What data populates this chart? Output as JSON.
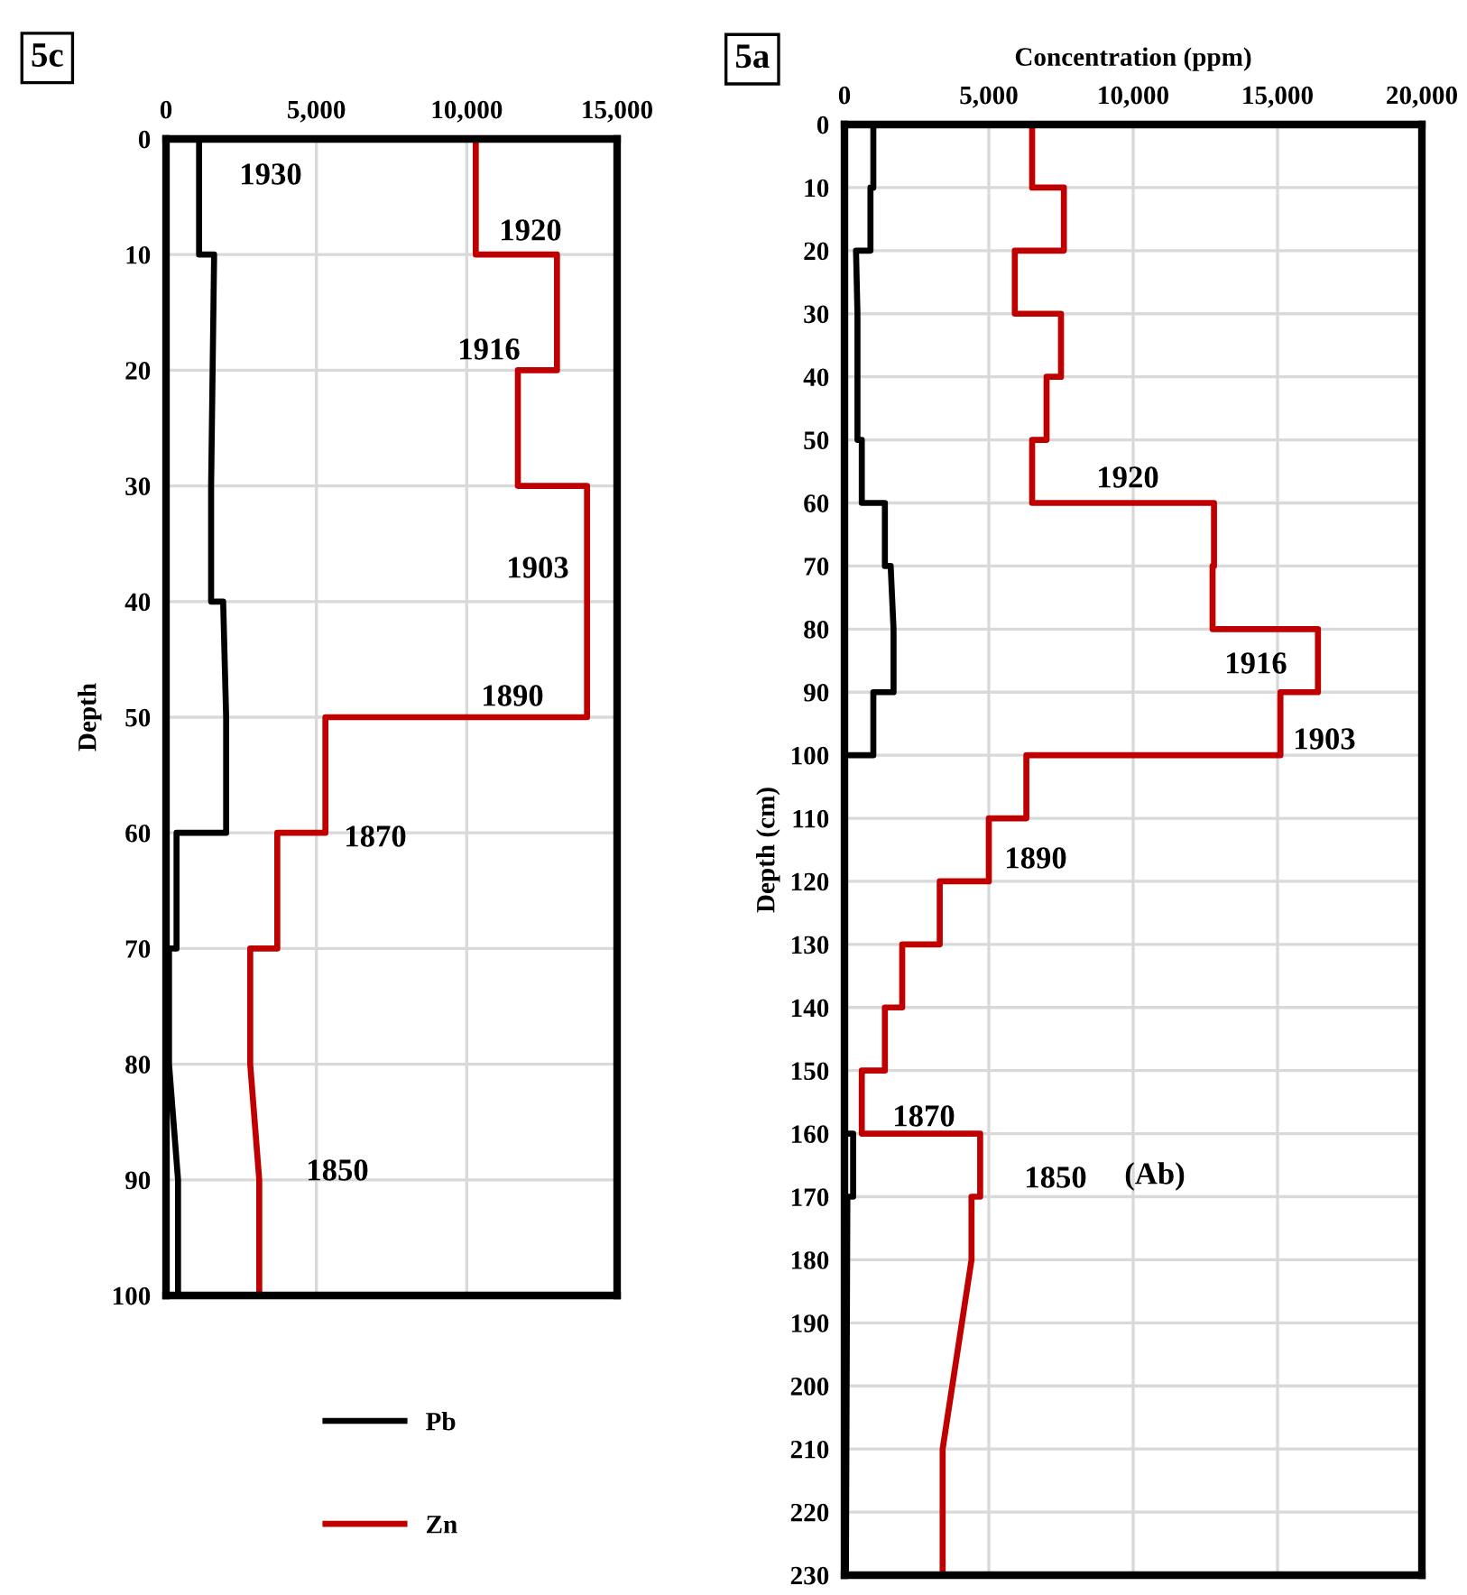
{
  "chart_data": [
    {
      "type": "line",
      "title": "5c",
      "ylabel": "Depth",
      "ylim": [
        100,
        0
      ],
      "yticks": [
        0,
        10,
        20,
        30,
        40,
        50,
        60,
        70,
        80,
        90,
        100
      ],
      "xlim": [
        0,
        15000
      ],
      "xticks": [
        0,
        {
          "value": 5000,
          "label": "5,000"
        },
        {
          "value": 10000,
          "label": "10,000"
        },
        {
          "value": 15000,
          "label": "15,000"
        }
      ],
      "grid": true,
      "legend": "bottom",
      "marker": "none",
      "line_style": "solid",
      "series": [
        {
          "name": "Pb",
          "color": "#000000",
          "x": [
            1100,
            1100,
            1600,
            1550,
            1500,
            1500,
            1900,
            2000,
            2000,
            350,
            350,
            100,
            100,
            400,
            400
          ],
          "values": [
            0,
            10,
            10,
            20,
            30,
            40,
            40,
            50,
            60,
            60,
            70,
            70,
            80,
            90,
            100
          ]
        },
        {
          "name": "Zn",
          "color": "#c00000",
          "x": [
            10300,
            10300,
            13000,
            13000,
            11700,
            11700,
            14000,
            14000,
            5300,
            5300,
            3700,
            3700,
            2800,
            2800,
            3100,
            3100
          ],
          "values": [
            0,
            10,
            10,
            20,
            20,
            30,
            30,
            50,
            50,
            60,
            60,
            70,
            70,
            80,
            90,
            100
          ]
        }
      ],
      "annotations": [
        "1930",
        "1920",
        "1916",
        "1903",
        "1890",
        "1870",
        "1850"
      ]
    },
    {
      "type": "line",
      "title": "5a",
      "xlabel": "Concentration (ppm)",
      "ylabel": "Depth (cm)",
      "ylim": [
        230,
        0
      ],
      "yticks": [
        0,
        10,
        20,
        30,
        40,
        50,
        60,
        70,
        80,
        90,
        100,
        110,
        120,
        130,
        140,
        150,
        160,
        170,
        180,
        190,
        200,
        210,
        220,
        230
      ],
      "xlim": [
        0,
        20000
      ],
      "xticks": [
        0,
        {
          "value": 5000,
          "label": "5,000"
        },
        {
          "value": 10000,
          "label": "10,000"
        },
        {
          "value": 15000,
          "label": "15,000"
        },
        {
          "value": 20000,
          "label": "20,000"
        }
      ],
      "grid": true,
      "marker": "none",
      "line_style": "solid",
      "series": [
        {
          "color": "#000000",
          "x": [
            1000,
            1000,
            900,
            900,
            400,
            450,
            450,
            450,
            600,
            600,
            1400,
            1400,
            1600,
            1700,
            1700,
            1000,
            1000,
            0,
            0,
            300,
            300,
            100,
            50
          ],
          "values": [
            0,
            10,
            10,
            20,
            20,
            30,
            40,
            50,
            50,
            60,
            60,
            70,
            70,
            80,
            90,
            90,
            100,
            100,
            160,
            160,
            170,
            170,
            230
          ]
        },
        {
          "color": "#c00000",
          "x": [
            6500,
            6500,
            7600,
            7600,
            5900,
            5900,
            7500,
            7500,
            7000,
            7000,
            6500,
            6500,
            12800,
            12800,
            12750,
            12750,
            16400,
            16400,
            15100,
            15100,
            6300,
            6300,
            5000,
            5000,
            3300,
            3300,
            2000,
            2000,
            1400,
            1400,
            600,
            600,
            4700,
            4700,
            4400,
            4400,
            3400,
            3400
          ],
          "values": [
            0,
            10,
            10,
            20,
            20,
            30,
            30,
            40,
            40,
            50,
            50,
            60,
            60,
            70,
            70,
            80,
            80,
            90,
            90,
            100,
            100,
            110,
            110,
            120,
            120,
            130,
            130,
            140,
            140,
            150,
            150,
            160,
            160,
            170,
            170,
            180,
            210,
            230
          ]
        }
      ],
      "annotations": [
        "1920",
        "1916",
        "1903",
        "1890",
        "1870",
        "1850",
        "(Ab)"
      ]
    }
  ]
}
